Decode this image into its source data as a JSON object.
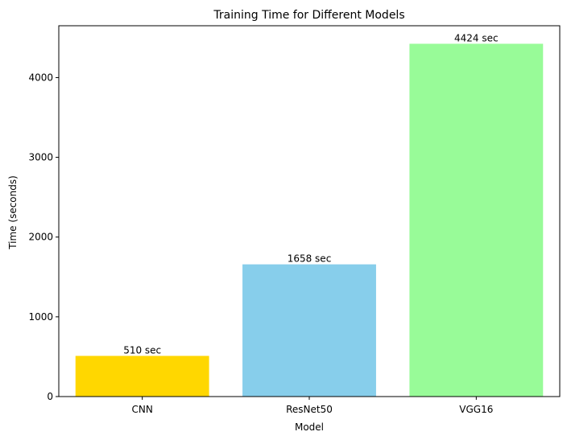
{
  "chart_data": {
    "type": "bar",
    "title": "Training Time for Different Models",
    "xlabel": "Model",
    "ylabel": "Time (seconds)",
    "categories": [
      "CNN",
      "ResNet50",
      "VGG16"
    ],
    "values": [
      510,
      1658,
      4424
    ],
    "data_labels": [
      "510 sec",
      "1658 sec",
      "4424 sec"
    ],
    "colors": [
      "#ffd700",
      "#87ceeb",
      "#98fb98"
    ],
    "yticks": [
      0,
      1000,
      2000,
      3000,
      4000
    ],
    "ylim": [
      0,
      4650
    ],
    "grid": false,
    "legend": "none"
  }
}
